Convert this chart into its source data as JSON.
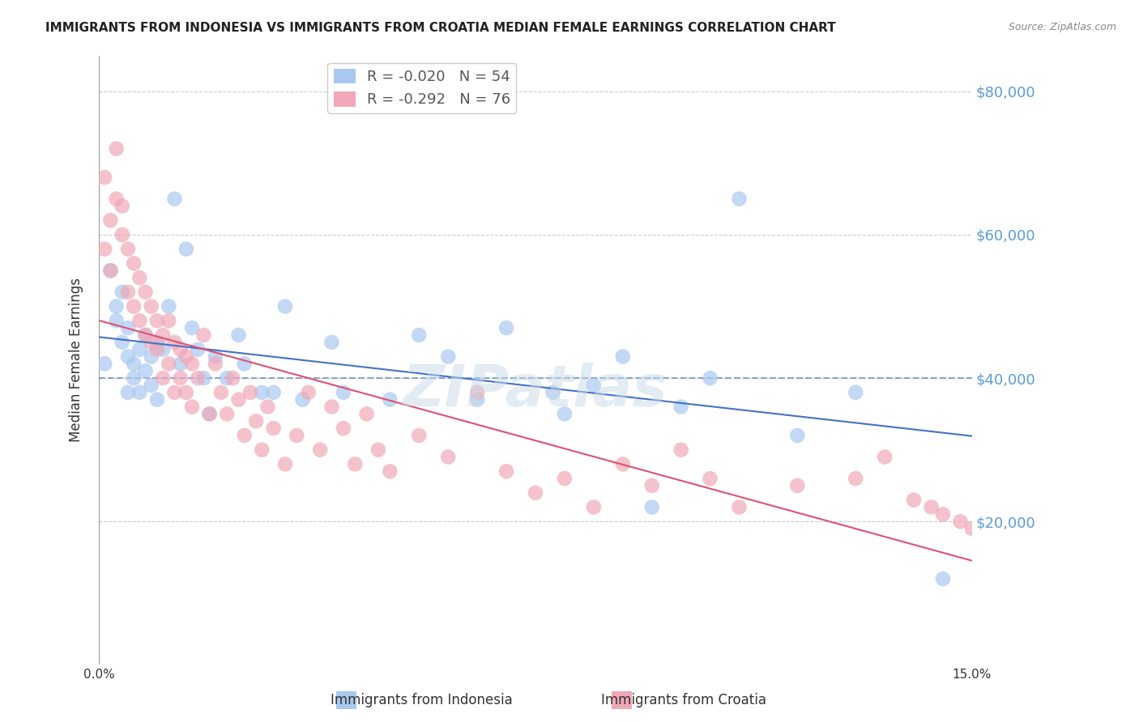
{
  "title": "IMMIGRANTS FROM INDONESIA VS IMMIGRANTS FROM CROATIA MEDIAN FEMALE EARNINGS CORRELATION CHART",
  "source": "Source: ZipAtlas.com",
  "xlabel": "",
  "ylabel": "Median Female Earnings",
  "xlim": [
    0.0,
    0.15
  ],
  "ylim": [
    0,
    85000
  ],
  "yticks": [
    0,
    20000,
    40000,
    60000,
    80000
  ],
  "ytick_labels": [
    "",
    "$20,000",
    "$40,000",
    "$60,000",
    "$80,000"
  ],
  "xticks": [
    0.0,
    0.03,
    0.06,
    0.09,
    0.12,
    0.15
  ],
  "xtick_labels": [
    "0.0%",
    "",
    "",
    "",
    "",
    "15.0%"
  ],
  "reference_line_y": 40000,
  "indonesia_color": "#a8c8f0",
  "croatia_color": "#f0a8b8",
  "indonesia_R": -0.02,
  "indonesia_N": 54,
  "croatia_R": -0.292,
  "croatia_N": 76,
  "legend_label_indonesia": "Immigrants from Indonesia",
  "legend_label_croatia": "Immigrants from Croatia",
  "indonesia_x": [
    0.001,
    0.002,
    0.003,
    0.003,
    0.004,
    0.004,
    0.005,
    0.005,
    0.005,
    0.006,
    0.006,
    0.007,
    0.007,
    0.008,
    0.008,
    0.009,
    0.009,
    0.01,
    0.01,
    0.011,
    0.012,
    0.013,
    0.014,
    0.015,
    0.016,
    0.017,
    0.018,
    0.019,
    0.02,
    0.022,
    0.024,
    0.025,
    0.028,
    0.03,
    0.032,
    0.035,
    0.04,
    0.042,
    0.05,
    0.055,
    0.06,
    0.065,
    0.07,
    0.078,
    0.08,
    0.085,
    0.09,
    0.095,
    0.1,
    0.105,
    0.11,
    0.12,
    0.13,
    0.145
  ],
  "indonesia_y": [
    42000,
    55000,
    48000,
    50000,
    45000,
    52000,
    43000,
    47000,
    38000,
    42000,
    40000,
    44000,
    38000,
    46000,
    41000,
    43000,
    39000,
    45000,
    37000,
    44000,
    50000,
    65000,
    42000,
    58000,
    47000,
    44000,
    40000,
    35000,
    43000,
    40000,
    46000,
    42000,
    38000,
    38000,
    50000,
    37000,
    45000,
    38000,
    37000,
    46000,
    43000,
    37000,
    47000,
    38000,
    35000,
    39000,
    43000,
    22000,
    36000,
    40000,
    65000,
    32000,
    38000,
    12000
  ],
  "croatia_x": [
    0.001,
    0.001,
    0.002,
    0.002,
    0.003,
    0.003,
    0.004,
    0.004,
    0.005,
    0.005,
    0.006,
    0.006,
    0.007,
    0.007,
    0.008,
    0.008,
    0.009,
    0.009,
    0.01,
    0.01,
    0.011,
    0.011,
    0.012,
    0.012,
    0.013,
    0.013,
    0.014,
    0.014,
    0.015,
    0.015,
    0.016,
    0.016,
    0.017,
    0.018,
    0.019,
    0.02,
    0.021,
    0.022,
    0.023,
    0.024,
    0.025,
    0.026,
    0.027,
    0.028,
    0.029,
    0.03,
    0.032,
    0.034,
    0.036,
    0.038,
    0.04,
    0.042,
    0.044,
    0.046,
    0.048,
    0.05,
    0.055,
    0.06,
    0.065,
    0.07,
    0.075,
    0.08,
    0.085,
    0.09,
    0.095,
    0.1,
    0.105,
    0.11,
    0.12,
    0.13,
    0.135,
    0.14,
    0.143,
    0.145,
    0.148,
    0.15
  ],
  "croatia_y": [
    68000,
    58000,
    62000,
    55000,
    65000,
    72000,
    60000,
    64000,
    58000,
    52000,
    50000,
    56000,
    48000,
    54000,
    46000,
    52000,
    50000,
    45000,
    48000,
    44000,
    46000,
    40000,
    48000,
    42000,
    45000,
    38000,
    44000,
    40000,
    43000,
    38000,
    42000,
    36000,
    40000,
    46000,
    35000,
    42000,
    38000,
    35000,
    40000,
    37000,
    32000,
    38000,
    34000,
    30000,
    36000,
    33000,
    28000,
    32000,
    38000,
    30000,
    36000,
    33000,
    28000,
    35000,
    30000,
    27000,
    32000,
    29000,
    38000,
    27000,
    24000,
    26000,
    22000,
    28000,
    25000,
    30000,
    26000,
    22000,
    25000,
    26000,
    29000,
    23000,
    22000,
    21000,
    20000,
    19000
  ]
}
